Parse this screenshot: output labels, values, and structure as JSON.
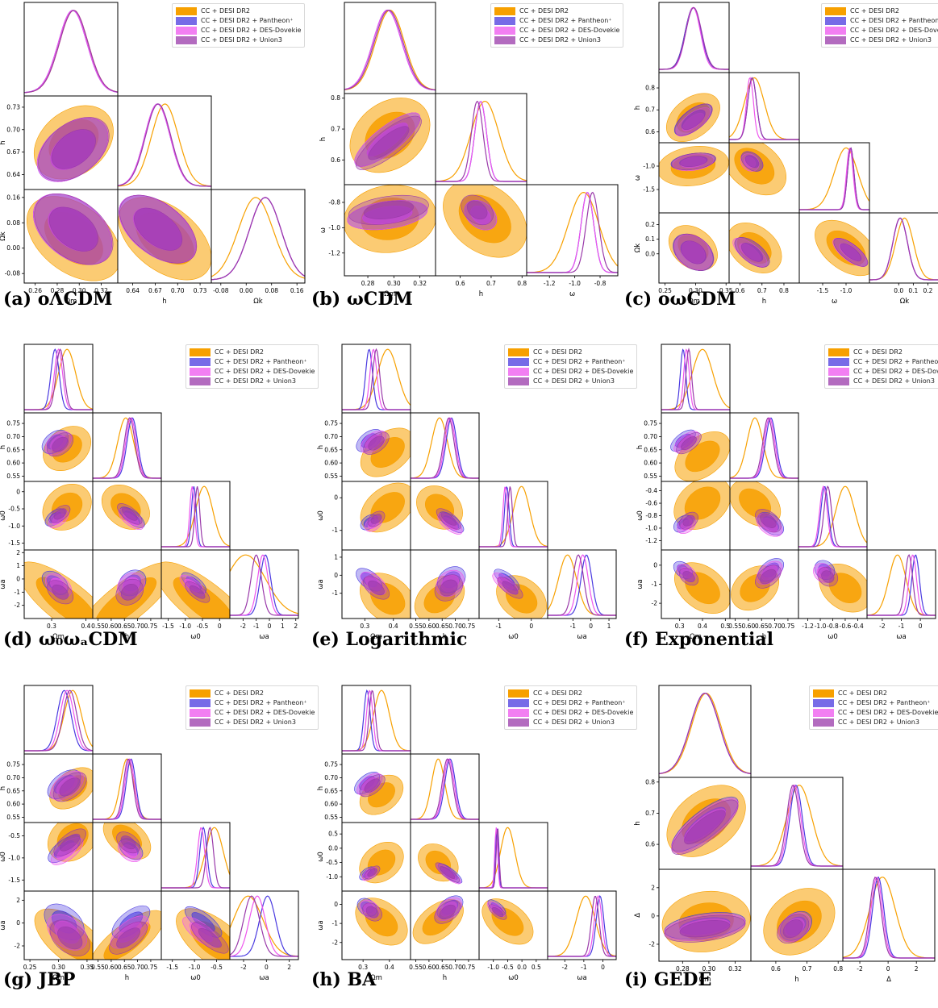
{
  "colors": {
    "cc_desi": "#f7a000",
    "pantheon": "#4a3ae0",
    "des_dovekie": "#ee55ee",
    "union3": "#9a3aaa"
  },
  "legend": [
    "CC + DESI DR2",
    "CC + DESI DR2 + Pantheon⁺",
    "CC + DESI DR2 + DES-Dovekie",
    "CC + DESI DR2 + Union3"
  ],
  "captions": {
    "a": "(a) oΛCDM",
    "b": "(b) ωCDM",
    "c": "(c) oωCDM",
    "d": "(d) ω₀ωₐCDM",
    "e": "(e) Logarithmic",
    "f": "(f) Exponential",
    "g": "(g) JBP",
    "h": "(h) BA",
    "i": "(i) GEDE"
  },
  "chart_data": [
    {
      "id": "a",
      "type": "corner",
      "title": "oΛCDM",
      "params": [
        {
          "label": "Ωm",
          "ticks": [
            "0.26",
            "0.28",
            "0.30",
            "0.32"
          ],
          "range": [
            0.25,
            0.335
          ],
          "means": [
            0.295,
            0.294,
            0.294,
            0.295
          ],
          "sigmas": [
            0.013,
            0.013,
            0.013,
            0.013
          ]
        },
        {
          "label": "h",
          "ticks": [
            "0.64",
            "0.67",
            "0.70",
            "0.73"
          ],
          "range": [
            0.62,
            0.745
          ],
          "means": [
            0.683,
            0.673,
            0.673,
            0.674
          ],
          "sigmas": [
            0.018,
            0.017,
            0.017,
            0.017
          ]
        },
        {
          "label": "Ωk",
          "ticks": [
            "-0.08",
            "0.00",
            "0.08",
            "0.16"
          ],
          "range": [
            -0.11,
            0.185
          ],
          "means": [
            0.03,
            0.06,
            0.06,
            0.06
          ],
          "sigmas": [
            0.055,
            0.05,
            0.05,
            0.05
          ]
        }
      ]
    },
    {
      "id": "b",
      "type": "corner",
      "title": "ωCDM",
      "params": [
        {
          "label": "Ωm",
          "ticks": [
            "0.28",
            "0.30",
            "0.32"
          ],
          "range": [
            0.262,
            0.332
          ],
          "means": [
            0.297,
            0.295,
            0.295,
            0.296
          ],
          "sigmas": [
            0.011,
            0.011,
            0.011,
            0.011
          ]
        },
        {
          "label": "h",
          "ticks": [
            "0.6",
            "0.7",
            "0.8"
          ],
          "range": [
            0.52,
            0.815
          ],
          "means": [
            0.68,
            0.666,
            0.666,
            0.655
          ],
          "sigmas": [
            0.045,
            0.019,
            0.019,
            0.019
          ]
        },
        {
          "label": "ω",
          "ticks": [
            "-1.2",
            "-1.0",
            "-0.8"
          ],
          "range": [
            -1.38,
            -0.66
          ],
          "means": [
            -0.93,
            -0.9,
            -0.9,
            -0.86
          ],
          "sigmas": [
            0.12,
            0.05,
            0.05,
            0.05
          ]
        }
      ]
    },
    {
      "id": "c",
      "type": "corner",
      "title": "oωCDM",
      "params": [
        {
          "label": "Ωm",
          "ticks": [
            "0.25",
            "0.30",
            "0.35"
          ],
          "range": [
            0.24,
            0.355
          ],
          "means": [
            0.296,
            0.296,
            0.296,
            0.297
          ],
          "sigmas": [
            0.013,
            0.013,
            0.012,
            0.013
          ]
        },
        {
          "label": "h",
          "ticks": [
            "0.6",
            "0.7",
            "0.8"
          ],
          "range": [
            0.55,
            0.87
          ],
          "means": [
            0.665,
            0.655,
            0.645,
            0.655
          ],
          "sigmas": [
            0.045,
            0.02,
            0.016,
            0.02
          ]
        },
        {
          "label": "ω",
          "ticks": [
            "-1.5",
            "-1.0"
          ],
          "range": [
            -2.0,
            -0.5
          ],
          "means": [
            -1.0,
            -0.9,
            -0.92,
            -0.9
          ],
          "sigmas": [
            0.25,
            0.07,
            0.07,
            0.07
          ]
        },
        {
          "label": "Ωk",
          "ticks": [
            "0.0",
            "0.1",
            "0.2"
          ],
          "range": [
            -0.2,
            0.28
          ],
          "means": [
            0.04,
            0.01,
            0.01,
            0.01
          ],
          "sigmas": [
            0.06,
            0.05,
            0.05,
            0.05
          ]
        }
      ]
    },
    {
      "id": "d",
      "type": "corner",
      "title": "ω₀ωₐCDM",
      "params": [
        {
          "label": "Ωm",
          "ticks": [
            "0.3",
            "0.4"
          ],
          "range": [
            0.22,
            0.42
          ],
          "means": [
            0.345,
            0.31,
            0.32,
            0.325
          ],
          "sigmas": [
            0.025,
            0.012,
            0.012,
            0.012
          ]
        },
        {
          "label": "h",
          "ticks": [
            "0.55",
            "0.60",
            "0.65",
            "0.70",
            "0.75"
          ],
          "range": [
            0.53,
            0.79
          ],
          "means": [
            0.655,
            0.68,
            0.675,
            0.67
          ],
          "sigmas": [
            0.03,
            0.02,
            0.02,
            0.02
          ]
        },
        {
          "label": "ω0",
          "ticks": [
            "-1.5",
            "-1.0",
            "-0.5",
            "0"
          ],
          "range": [
            -1.7,
            0.3
          ],
          "means": [
            -0.45,
            -0.75,
            -0.8,
            -0.65
          ],
          "sigmas": [
            0.25,
            0.07,
            0.07,
            0.07
          ]
        },
        {
          "label": "ωa",
          "ticks": [
            "-2",
            "-1",
            "0",
            "1",
            "2"
          ],
          "range": [
            -3.0,
            2.2
          ],
          "means": [
            -1.8,
            -0.3,
            -0.5,
            -1.0
          ],
          "sigmas": [
            1.5,
            0.4,
            0.4,
            0.4
          ]
        }
      ]
    },
    {
      "id": "e",
      "type": "corner",
      "title": "Logarithmic",
      "params": [
        {
          "label": "Ωm",
          "ticks": [
            "0.3",
            "0.4"
          ],
          "range": [
            0.22,
            0.46
          ],
          "means": [
            0.38,
            0.315,
            0.33,
            0.34
          ],
          "sigmas": [
            0.035,
            0.012,
            0.012,
            0.012
          ]
        },
        {
          "label": "h",
          "ticks": [
            "0.55",
            "0.60",
            "0.65",
            "0.70",
            "0.75"
          ],
          "range": [
            0.53,
            0.79
          ],
          "means": [
            0.64,
            0.685,
            0.68,
            0.675
          ],
          "sigmas": [
            0.03,
            0.02,
            0.02,
            0.02
          ]
        },
        {
          "label": "ω0",
          "ticks": [
            "-1",
            "0"
          ],
          "range": [
            -1.6,
            0.5
          ],
          "means": [
            -0.3,
            -0.75,
            -0.8,
            -0.65
          ],
          "sigmas": [
            0.25,
            0.07,
            0.07,
            0.07
          ]
        },
        {
          "label": "ωa",
          "ticks": [
            "-1",
            "0",
            "1"
          ],
          "range": [
            -2.4,
            1.4
          ],
          "means": [
            -1.3,
            -0.25,
            -0.45,
            -0.7
          ],
          "sigmas": [
            0.5,
            0.3,
            0.3,
            0.3
          ]
        }
      ]
    },
    {
      "id": "f",
      "type": "corner",
      "title": "Exponential",
      "params": [
        {
          "label": "Ωm",
          "ticks": [
            "0.3",
            "0.4",
            "0.5"
          ],
          "range": [
            0.22,
            0.52
          ],
          "means": [
            0.4,
            0.315,
            0.33,
            0.34
          ],
          "sigmas": [
            0.045,
            0.012,
            0.012,
            0.012
          ]
        },
        {
          "label": "h",
          "ticks": [
            "0.55",
            "0.60",
            "0.65",
            "0.70",
            "0.75"
          ],
          "range": [
            0.53,
            0.79
          ],
          "means": [
            0.625,
            0.685,
            0.68,
            0.675
          ],
          "sigmas": [
            0.03,
            0.02,
            0.02,
            0.02
          ]
        },
        {
          "label": "ω0",
          "ticks": [
            "-1.2",
            "-1.0",
            "-0.8",
            "-0.6",
            "-0.4"
          ],
          "range": [
            -1.35,
            -0.25
          ],
          "means": [
            -0.6,
            -0.93,
            -0.95,
            -0.88
          ],
          "sigmas": [
            0.15,
            0.06,
            0.06,
            0.06
          ]
        },
        {
          "label": "ωa",
          "ticks": [
            "-2",
            "-1",
            "0"
          ],
          "range": [
            -2.8,
            0.8
          ],
          "means": [
            -1.2,
            -0.25,
            -0.4,
            -0.6
          ],
          "sigmas": [
            0.45,
            0.2,
            0.2,
            0.2
          ]
        }
      ]
    },
    {
      "id": "g",
      "type": "corner",
      "title": "JBP",
      "params": [
        {
          "label": "Ωm",
          "ticks": [
            "0.25",
            "0.30",
            "0.35"
          ],
          "range": [
            0.24,
            0.36
          ],
          "means": [
            0.325,
            0.31,
            0.315,
            0.32
          ],
          "sigmas": [
            0.015,
            0.012,
            0.012,
            0.012
          ]
        },
        {
          "label": "h",
          "ticks": [
            "0.55",
            "0.60",
            "0.65",
            "0.70",
            "0.75"
          ],
          "range": [
            0.53,
            0.79
          ],
          "means": [
            0.66,
            0.675,
            0.67,
            0.665
          ],
          "sigmas": [
            0.025,
            0.018,
            0.018,
            0.018
          ]
        },
        {
          "label": "ω0",
          "ticks": [
            "-1.5",
            "-1.0",
            "-0.5"
          ],
          "range": [
            -1.75,
            -0.2
          ],
          "means": [
            -0.55,
            -0.8,
            -0.85,
            -0.65
          ],
          "sigmas": [
            0.2,
            0.08,
            0.08,
            0.08
          ]
        },
        {
          "label": "ωa",
          "ticks": [
            "-2",
            "0",
            "2"
          ],
          "range": [
            -3.2,
            2.8
          ],
          "means": [
            -1.6,
            0.1,
            -0.8,
            -1.3
          ],
          "sigmas": [
            1.3,
            0.7,
            0.7,
            0.7
          ]
        }
      ]
    },
    {
      "id": "h",
      "type": "corner",
      "title": "BA",
      "params": [
        {
          "label": "Ωm",
          "ticks": [
            "0.3",
            "0.4"
          ],
          "range": [
            0.22,
            0.48
          ],
          "means": [
            0.37,
            0.315,
            0.325,
            0.335
          ],
          "sigmas": [
            0.03,
            0.012,
            0.012,
            0.012
          ]
        },
        {
          "label": "h",
          "ticks": [
            "0.55",
            "0.60",
            "0.65",
            "0.70",
            "0.75"
          ],
          "range": [
            0.53,
            0.79
          ],
          "means": [
            0.635,
            0.68,
            0.675,
            0.67
          ],
          "sigmas": [
            0.025,
            0.02,
            0.02,
            0.02
          ]
        },
        {
          "label": "ω0",
          "ticks": [
            "-1.0",
            "-0.5",
            "0.0",
            "0.5"
          ],
          "range": [
            -1.5,
            0.9
          ],
          "means": [
            -0.5,
            -0.88,
            -0.9,
            -0.85
          ],
          "sigmas": [
            0.25,
            0.05,
            0.05,
            0.05
          ]
        },
        {
          "label": "ωa",
          "ticks": [
            "-2",
            "-1",
            "0"
          ],
          "range": [
            -2.9,
            0.7
          ],
          "means": [
            -0.9,
            -0.15,
            -0.25,
            -0.4
          ],
          "sigmas": [
            0.5,
            0.2,
            0.2,
            0.2
          ]
        }
      ]
    },
    {
      "id": "i",
      "type": "corner",
      "title": "GEDE",
      "params": [
        {
          "label": "Ωm",
          "ticks": [
            "0.28",
            "0.30",
            "0.32"
          ],
          "range": [
            0.262,
            0.332
          ],
          "means": [
            0.298,
            0.297,
            0.297,
            0.297
          ],
          "sigmas": [
            0.011,
            0.011,
            0.011,
            0.011
          ]
        },
        {
          "label": "h",
          "ticks": [
            "0.6",
            "0.7",
            "0.8"
          ],
          "range": [
            0.52,
            0.815
          ],
          "means": [
            0.675,
            0.665,
            0.66,
            0.655
          ],
          "sigmas": [
            0.04,
            0.02,
            0.02,
            0.02
          ]
        },
        {
          "label": "Δ",
          "ticks": [
            "-2",
            "0",
            "2"
          ],
          "range": [
            -3.2,
            3.3
          ],
          "means": [
            -0.4,
            -0.7,
            -0.8,
            -0.9
          ],
          "sigmas": [
            0.9,
            0.4,
            0.4,
            0.4
          ]
        }
      ]
    }
  ]
}
